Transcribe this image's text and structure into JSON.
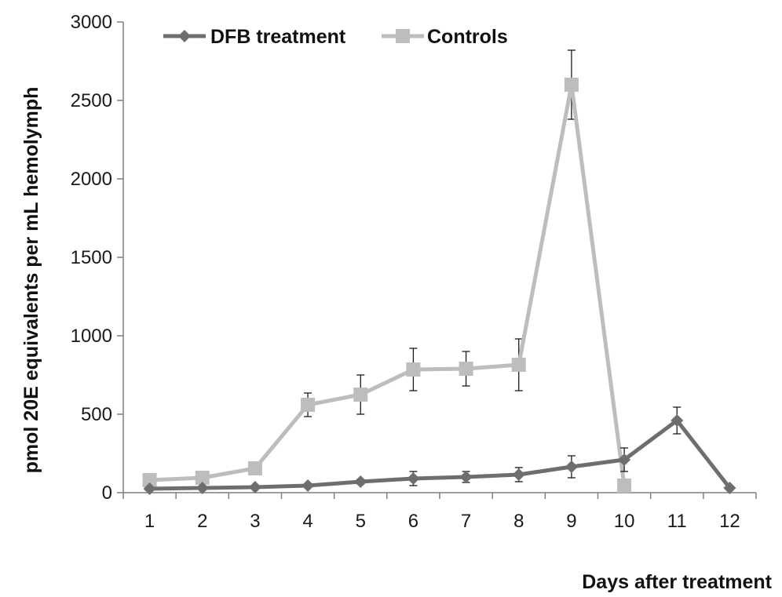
{
  "chart_data": {
    "type": "line",
    "title": "",
    "xlabel": "Days after treatment",
    "ylabel": "pmol 20E equivalents per mL hemolymph",
    "x": [
      1,
      2,
      3,
      4,
      5,
      6,
      7,
      8,
      9,
      10,
      11,
      12
    ],
    "ylim": [
      0,
      3000
    ],
    "yticks": [
      0,
      500,
      1000,
      1500,
      2000,
      2500,
      3000
    ],
    "grid": false,
    "legend_position": "top-left",
    "series": [
      {
        "name": "DFB treatment",
        "marker": "diamond",
        "color": "#6e6e6e",
        "x": [
          1,
          2,
          3,
          4,
          5,
          6,
          7,
          8,
          9,
          10,
          11,
          12
        ],
        "values": [
          25,
          30,
          35,
          45,
          70,
          90,
          100,
          115,
          165,
          210,
          460,
          30
        ],
        "error": [
          5,
          5,
          5,
          10,
          15,
          45,
          35,
          45,
          70,
          75,
          85,
          5
        ]
      },
      {
        "name": "Controls",
        "marker": "square",
        "color": "#bdbdbd",
        "x": [
          1,
          2,
          3,
          4,
          5,
          6,
          7,
          8,
          9,
          10
        ],
        "values": [
          80,
          95,
          155,
          560,
          625,
          785,
          790,
          815,
          2600,
          45
        ],
        "error": [
          10,
          10,
          15,
          75,
          125,
          135,
          110,
          165,
          220,
          5
        ]
      }
    ]
  }
}
